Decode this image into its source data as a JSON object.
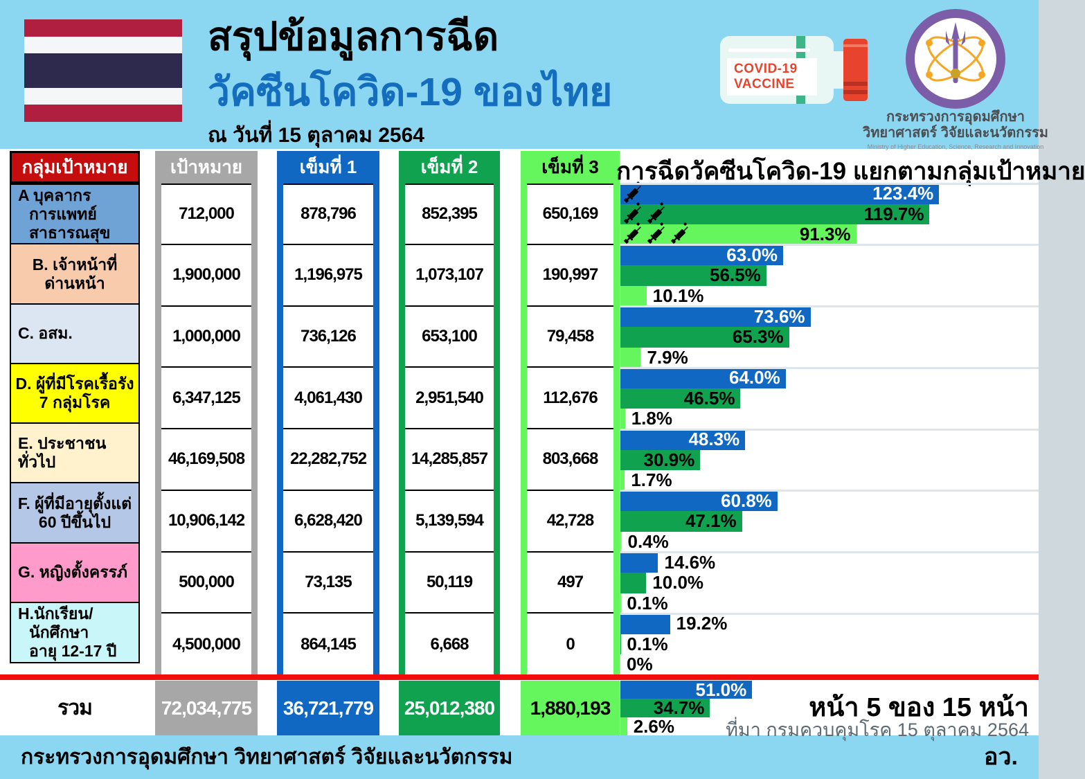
{
  "header": {
    "title_line1": "สรุปข้อมูลการฉีด",
    "title_line2": "วัคซีนโควิด-19 ของไทย",
    "date_line": "ณ วันที่ 15 ตุลาคม 2564",
    "vial_label_line1": "COVID-19",
    "vial_label_line2": "VACCINE",
    "ministry_line1": "กระทรวงการอุดมศึกษา",
    "ministry_line2": "วิทยาศาสตร์ วิจัยและนวัตกรรม",
    "ministry_en": "Ministry of Higher Education, Science, Research and Innovation"
  },
  "icons": {
    "thai-flag-icon": "horizontal stripes red-white-navy-white-red",
    "vaccine-vial-icon": "horizontal vial, mint band, red cap, label COVID-19 VACCINE",
    "ministry-seal-icon": "purple circular seal with atom-trident emblem",
    "syringe-icon": "black diagonal syringe 💉 (count = dose number)"
  },
  "table": {
    "headers": {
      "group": "กลุ่มเป้าหมาย",
      "target": "เป้าหมาย",
      "dose1": "เข็มที่ 1",
      "dose2": "เข็มที่ 2",
      "dose3": "เข็มที่ 3"
    },
    "rows": [
      {
        "id": "A",
        "label_lines": [
          "A บุคลากร",
          "การแพทย์",
          "สาธารณสุข"
        ],
        "align": "left",
        "row_color": "#6FA3D6",
        "target": "712,000",
        "dose1": "878,796",
        "dose2": "852,395",
        "dose3": "650,169",
        "pct": [
          123.4,
          119.7,
          91.3
        ],
        "pct_labels": [
          "123.4%",
          "119.7%",
          "91.3%"
        ],
        "syringes": [
          1,
          2,
          3
        ]
      },
      {
        "id": "B",
        "label_lines": [
          "B. เจ้าหน้าที่",
          "ด่านหน้า"
        ],
        "align": "center",
        "row_color": "#F8CBAD",
        "target": "1,900,000",
        "dose1": "1,196,975",
        "dose2": "1,073,107",
        "dose3": "190,997",
        "pct": [
          63.0,
          56.5,
          10.1
        ],
        "pct_labels": [
          "63.0%",
          "56.5%",
          "10.1%"
        ]
      },
      {
        "id": "C",
        "label_lines": [
          "C. อสม."
        ],
        "align": "left",
        "row_color": "#DCE6F2",
        "target": "1,000,000",
        "dose1": "736,126",
        "dose2": "653,100",
        "dose3": "79,458",
        "pct": [
          73.6,
          65.3,
          7.9
        ],
        "pct_labels": [
          "73.6%",
          "65.3%",
          "7.9%"
        ]
      },
      {
        "id": "D",
        "label_lines": [
          "D. ผู้ที่มีโรคเรื้อรัง",
          "7 กลุ่มโรค"
        ],
        "align": "center",
        "row_color": "#FFFF00",
        "target": "6,347,125",
        "dose1": "4,061,430",
        "dose2": "2,951,540",
        "dose3": "112,676",
        "pct": [
          64.0,
          46.5,
          1.8
        ],
        "pct_labels": [
          "64.0%",
          "46.5%",
          "1.8%"
        ]
      },
      {
        "id": "E",
        "label_lines": [
          "E. ประชาชนทั่วไป"
        ],
        "align": "left",
        "row_color": "#FFF2CC",
        "target": "46,169,508",
        "dose1": "22,282,752",
        "dose2": "14,285,857",
        "dose3": "803,668",
        "pct": [
          48.3,
          30.9,
          1.7
        ],
        "pct_labels": [
          "48.3%",
          "30.9%",
          "1.7%"
        ]
      },
      {
        "id": "F",
        "label_lines": [
          "F. ผู้ที่มีอายุตั้งแต่",
          "60 ปีขึ้นไป"
        ],
        "align": "center",
        "row_color": "#B4C7E7",
        "target": "10,906,142",
        "dose1": "6,628,420",
        "dose2": "5,139,594",
        "dose3": "42,728",
        "pct": [
          60.8,
          47.1,
          0.4
        ],
        "pct_labels": [
          "60.8%",
          "47.1%",
          "0.4%"
        ]
      },
      {
        "id": "G",
        "label_lines": [
          "G. หญิงตั้งครรภ์"
        ],
        "align": "left",
        "row_color": "#FF9BCB",
        "target": "500,000",
        "dose1": "73,135",
        "dose2": "50,119",
        "dose3": "497",
        "pct": [
          14.6,
          10.0,
          0.1
        ],
        "pct_labels": [
          "14.6%",
          "10.0%",
          "0.1%"
        ]
      },
      {
        "id": "H",
        "label_lines": [
          "H.นักเรียน/",
          "นักศึกษา",
          "อายุ 12-17 ปี"
        ],
        "align": "left",
        "row_color": "#C9F6F8",
        "target": "4,500,000",
        "dose1": "864,145",
        "dose2": "6,668",
        "dose3": "0",
        "pct": [
          19.2,
          0.1,
          0
        ],
        "pct_labels": [
          "19.2%",
          "0.1%",
          "0%"
        ]
      }
    ],
    "total": {
      "label": "รวม",
      "target": "72,034,775",
      "dose1": "36,721,779",
      "dose2": "25,012,380",
      "dose3": "1,880,193",
      "pct": [
        51.0,
        34.7,
        2.6
      ],
      "pct_labels": [
        "51.0%",
        "34.7%",
        "2.6%"
      ]
    }
  },
  "chart": {
    "title": "การฉีดวัคซีนโควิด-19 แยกตามกลุ่มเป้าหมาย"
  },
  "chart_data": {
    "type": "bar",
    "orientation": "horizontal",
    "title": "การฉีดวัคซีนโควิด-19 แยกตามกลุ่มเป้าหมาย",
    "unit": "%",
    "categories": [
      "A บุคลากรการแพทย์ สาธารณสุข",
      "B. เจ้าหน้าที่ด่านหน้า",
      "C. อสม.",
      "D. ผู้ที่มีโรคเรื้อรัง 7 กลุ่มโรค",
      "E. ประชาชนทั่วไป",
      "F. ผู้ที่มีอายุตั้งแต่ 60 ปีขึ้นไป",
      "G. หญิงตั้งครรภ์",
      "H.นักเรียน/นักศึกษา อายุ 12-17 ปี",
      "รวม"
    ],
    "series": [
      {
        "name": "เข็มที่ 1",
        "color": "#1168C2",
        "values": [
          123.4,
          63.0,
          73.6,
          64.0,
          48.3,
          60.8,
          14.6,
          19.2,
          51.0
        ]
      },
      {
        "name": "เข็มที่ 2",
        "color": "#10A24E",
        "values": [
          119.7,
          56.5,
          65.3,
          46.5,
          30.9,
          47.1,
          10.0,
          0.1,
          34.7
        ]
      },
      {
        "name": "เข็มที่ 3",
        "color": "#65F55C",
        "values": [
          91.3,
          10.1,
          7.9,
          1.8,
          1.7,
          0.4,
          0.1,
          0,
          2.6
        ]
      }
    ],
    "xlim": [
      0,
      130
    ],
    "grid": false,
    "legend": "none (dose shown by color and syringe icon count on group A)"
  },
  "footer": {
    "ministry": "กระทรวงการอุดมศึกษา วิทยาศาสตร์ วิจัยและนวัตกรรม",
    "abbrev": "อว.",
    "page_label": "หน้า 5 ของ 15 หน้า",
    "source": "ที่มา กรมควบคุมโรค 15 ตุลาคม 2564"
  },
  "colors": {
    "band_blue": "#8BD7F1",
    "red_header": "#C60D0E",
    "red_line": "#F20C0C",
    "gray": "#A7A7A7",
    "dose1_blue": "#1168C2",
    "dose2_green": "#10A24E",
    "dose3_light_green": "#65F55C",
    "title_blue": "#156DBE",
    "flag_red": "#B01E40",
    "flag_navy": "#2D2A4E",
    "logo_purple": "#7B5EA7",
    "vial_cap_red": "#E8432C"
  }
}
